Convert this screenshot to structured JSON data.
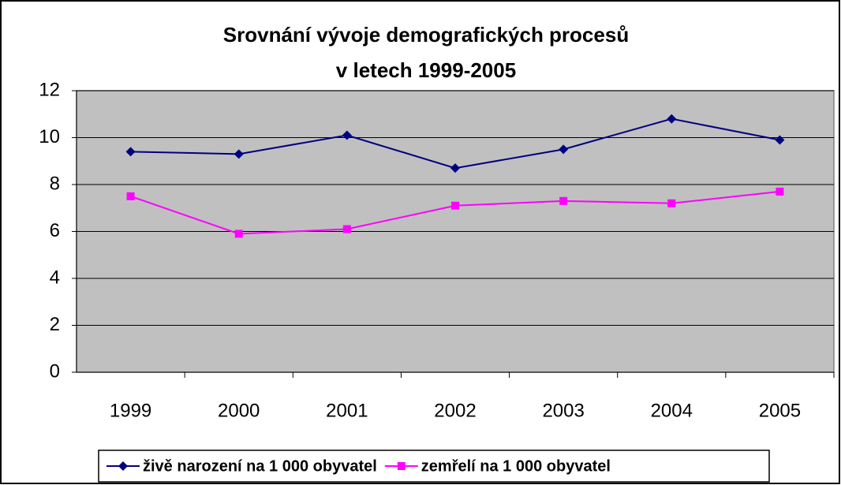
{
  "chart_data": {
    "type": "line",
    "title": [
      "Srovnání vývoje demografických procesů",
      "v letech 1999-2005"
    ],
    "categories": [
      "1999",
      "2000",
      "2001",
      "2002",
      "2003",
      "2004",
      "2005"
    ],
    "series": [
      {
        "name": "živě narození na 1 000 obyvatel",
        "color": "#000080",
        "marker": "diamond",
        "values": [
          9.4,
          9.3,
          10.1,
          8.7,
          9.5,
          10.8,
          9.9
        ]
      },
      {
        "name": "zemřelí na 1 000 obyvatel",
        "color": "#ff00ff",
        "marker": "square",
        "values": [
          7.5,
          5.9,
          6.1,
          7.1,
          7.3,
          7.2,
          7.7
        ]
      }
    ],
    "ylim": [
      0,
      12
    ],
    "yticks": [
      0,
      2,
      4,
      6,
      8,
      10,
      12
    ],
    "grid": true,
    "legend": "bottom"
  }
}
